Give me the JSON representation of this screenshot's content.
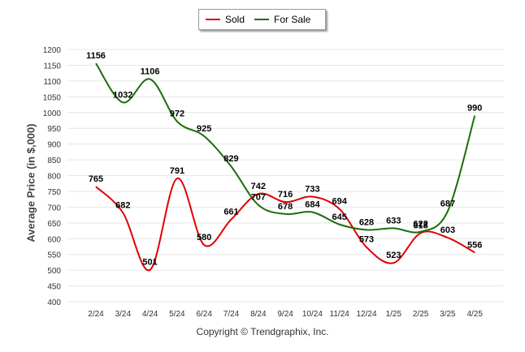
{
  "legend": {
    "sold_label": "Sold",
    "forsale_label": "For Sale"
  },
  "copyright": "Copyright © Trendgraphix, Inc.",
  "colors": {
    "sold": "#e00000",
    "for_sale": "#1a6e0a",
    "grid": "#e6e6e6"
  },
  "chart_data": {
    "type": "line",
    "categories": [
      "2/24",
      "3/24",
      "4/24",
      "5/24",
      "6/24",
      "7/24",
      "8/24",
      "9/24",
      "10/24",
      "11/24",
      "12/24",
      "1/25",
      "2/25",
      "3/25",
      "4/25"
    ],
    "series": [
      {
        "name": "Sold",
        "values": [
          765,
          682,
          501,
          791,
          580,
          661,
          742,
          716,
          733,
          694,
          573,
          523,
          618,
          603,
          556
        ]
      },
      {
        "name": "For Sale",
        "values": [
          1156,
          1032,
          1106,
          972,
          925,
          829,
          707,
          678,
          684,
          645,
          628,
          633,
          622,
          687,
          990
        ]
      }
    ],
    "ylabel": "Average Price (in $,000)",
    "ylim": [
      400,
      1200
    ],
    "yticks": [
      400,
      450,
      500,
      550,
      600,
      650,
      700,
      750,
      800,
      850,
      900,
      950,
      1000,
      1050,
      1100,
      1150,
      1200
    ],
    "grid": true,
    "legend_position": "top-center"
  }
}
